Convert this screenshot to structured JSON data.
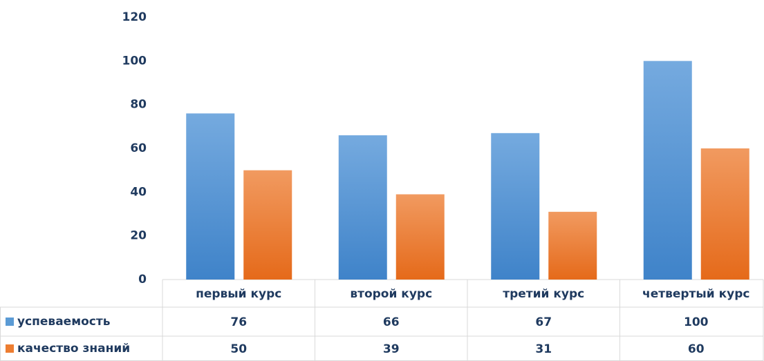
{
  "chart_data": {
    "type": "bar",
    "categories": [
      "первый курс",
      "второй курс",
      "третий курс",
      "четвертый курс"
    ],
    "series": [
      {
        "name": "успеваемость",
        "color": "#5b9bd5",
        "values": [
          76,
          66,
          67,
          100
        ]
      },
      {
        "name": "качество знаний",
        "color": "#ed7d31",
        "values": [
          50,
          39,
          31,
          60
        ]
      }
    ],
    "ylim": [
      0,
      120
    ],
    "yticks": [
      0,
      20,
      40,
      60,
      80,
      100,
      120
    ],
    "grid": false
  }
}
